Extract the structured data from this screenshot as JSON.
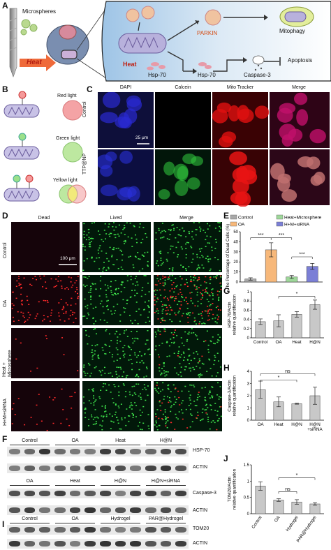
{
  "panels": {
    "A": "A",
    "B": "B",
    "C": "C",
    "D": "D",
    "E": "E",
    "F": "F",
    "G": "G",
    "H": "H",
    "I": "I",
    "J": "J"
  },
  "schematic": {
    "microspheres": "Microspheres",
    "heat": "Heat",
    "parkin": "PARKIN",
    "mitophagy": "Mitophagy",
    "heat2": "Heat",
    "hsp70a": "Hsp-70",
    "hsp70b": "Hsp-70",
    "caspase3": "Caspase-3",
    "apoptosis": "Apoptosis"
  },
  "lights": [
    "Red light",
    "Green light",
    "Yellow light"
  ],
  "panelC": {
    "cols": [
      "DAPI",
      "Calcein",
      "Mito Tracker",
      "Merge"
    ],
    "rows": [
      "Control",
      "TTP@NP"
    ],
    "scale": "25 μm"
  },
  "panelD": {
    "cols": [
      "Dead",
      "Lived",
      "Merge"
    ],
    "rows": [
      "Control",
      "OA",
      "Heat + Microsphere",
      "H+M+siRNA"
    ],
    "scale": "100 μm"
  },
  "blots": {
    "F_top_groups": [
      "Control",
      "OA",
      "Heat",
      "H@N"
    ],
    "F_top_rows": [
      "HSP-70",
      "ACTIN"
    ],
    "F_bot_groups": [
      "OA",
      "Heat",
      "H@N",
      "H@N+siRNA"
    ],
    "F_bot_rows": [
      "Caspase-3",
      "ACTIN"
    ],
    "I_groups": [
      "Control",
      "OA",
      "Hydrogel",
      "PAR@Hydrogel"
    ],
    "I_rows": [
      "TOM20",
      "ACTIN"
    ]
  },
  "colors": {
    "control": "#a8a8a8",
    "oa": "#f7b87a",
    "heat_micro": "#9ed79a",
    "hms": "#7b7fd6",
    "gray_bar": "#c8c8c8"
  },
  "chart_data": [
    {
      "id": "E",
      "type": "bar",
      "ylabel": "The Percentage of Dead Cells (%)",
      "ylim": [
        0,
        50
      ],
      "yticks": [
        0,
        10,
        20,
        30,
        40,
        50
      ],
      "categories": [
        "Control",
        "OA",
        "Heat+Microsphere",
        "H+M+siRNA"
      ],
      "values": [
        3,
        32,
        5,
        15.5
      ],
      "errors": [
        1.2,
        7,
        1.5,
        3
      ],
      "legend": [
        "Control",
        "OA",
        "Heat+Microsphere",
        "H+M+siRNA"
      ],
      "sig": [
        "***",
        "***",
        "***"
      ]
    },
    {
      "id": "G",
      "type": "bar",
      "ylabel": "HSP-70/Actin relative quantification",
      "ylim": [
        0,
        1.0
      ],
      "yticks": [
        0,
        0.2,
        0.4,
        0.6,
        0.8,
        1.0
      ],
      "categories": [
        "Control",
        "OA",
        "Heat",
        "H@N"
      ],
      "values": [
        0.35,
        0.37,
        0.51,
        0.72
      ],
      "errors": [
        0.06,
        0.13,
        0.06,
        0.1
      ],
      "sig": [
        "*"
      ]
    },
    {
      "id": "H",
      "type": "bar",
      "ylabel": "Caspase-3/Actin relative quantification",
      "ylim": [
        0,
        4
      ],
      "yticks": [
        0,
        1,
        2,
        3,
        4
      ],
      "categories": [
        "OA",
        "Heat",
        "H@N",
        "H@N +siRNA"
      ],
      "values": [
        2.5,
        1.5,
        1.35,
        2.0
      ],
      "errors": [
        0.7,
        0.4,
        0.04,
        0.7
      ],
      "sig": [
        "ns",
        "*"
      ]
    },
    {
      "id": "J",
      "type": "bar",
      "ylabel": "TOM20/Actin relative quantification",
      "ylim": [
        0,
        1.5
      ],
      "yticks": [
        0,
        0.5,
        1.0,
        1.5
      ],
      "categories": [
        "Control",
        "OA",
        "Hydrogel",
        "PAR@Hydrogel"
      ],
      "values": [
        0.85,
        0.42,
        0.36,
        0.3
      ],
      "errors": [
        0.13,
        0.04,
        0.07,
        0.04
      ],
      "sig": [
        "ns",
        "*"
      ]
    }
  ]
}
